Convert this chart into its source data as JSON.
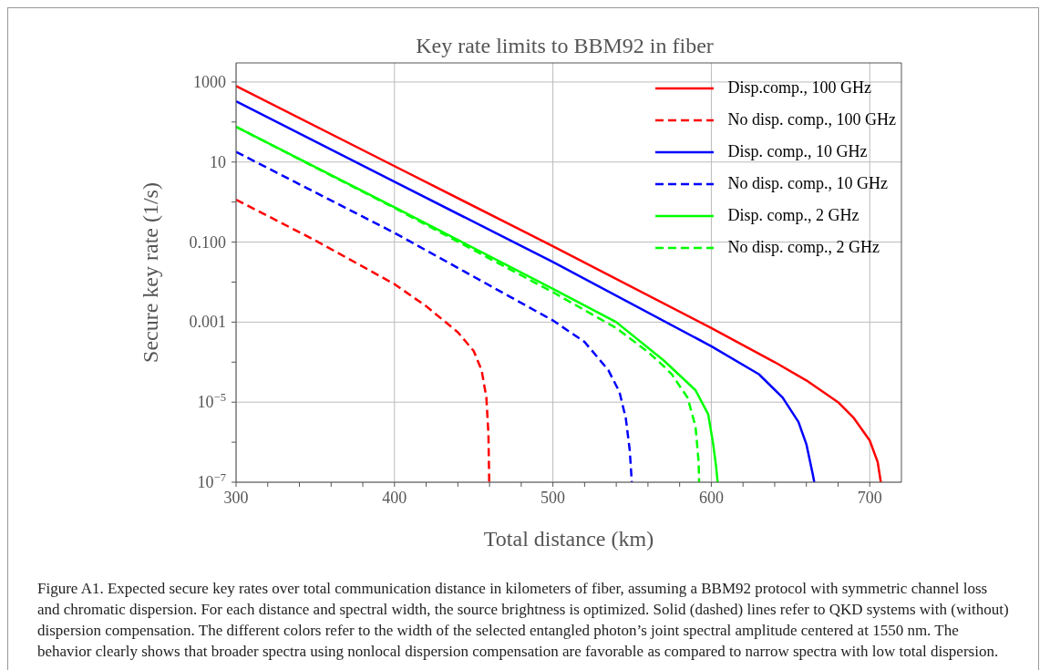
{
  "chart_data": {
    "type": "line",
    "title": "Key rate limits to BBM92 in fiber",
    "xlabel": "Total distance (km)",
    "ylabel": "Secure key rate (1/s)",
    "log": "y",
    "grid": true,
    "legend": "top right",
    "xlim": [
      300,
      720
    ],
    "xticks": [
      300,
      {
        "value": 320,
        "label": null
      },
      {
        "value": 340,
        "label": null
      },
      {
        "value": 360,
        "label": null
      },
      {
        "value": 380,
        "label": null
      },
      400,
      {
        "value": 420,
        "label": null
      },
      {
        "value": 440,
        "label": null
      },
      {
        "value": 460,
        "label": null
      },
      {
        "value": 480,
        "label": null
      },
      500,
      {
        "value": 520,
        "label": null
      },
      {
        "value": 540,
        "label": null
      },
      {
        "value": 560,
        "label": null
      },
      {
        "value": 580,
        "label": null
      },
      600,
      {
        "value": 620,
        "label": null
      },
      {
        "value": 640,
        "label": null
      },
      {
        "value": 660,
        "label": null
      },
      {
        "value": 680,
        "label": null
      },
      700
    ],
    "ylim": [
      1e-07,
      3000
    ],
    "yticks": [
      {
        "value": 1e-07,
        "label": "10$^{−7}$"
      },
      {
        "value": 1e-06,
        "label": null
      },
      {
        "value": 1e-05,
        "label": "10$^{−5}$"
      },
      {
        "value": 0.0001,
        "label": null
      },
      0.001,
      {
        "value": 0.01,
        "label": null
      },
      {
        "value": 0.1,
        "label": "0.100"
      },
      {
        "value": 1,
        "label": null
      },
      10,
      {
        "value": 100,
        "label": null
      },
      1000
    ],
    "series": [
      {
        "name": "Disp.comp., 100 GHz",
        "color": "#ff0000",
        "line_style": "solid",
        "x": [
          300,
          400,
          500,
          600,
          640,
          660,
          680,
          690,
          700,
          705,
          707
        ],
        "values": [
          794,
          7.9,
          0.079,
          0.00071,
          0.0001,
          3.5e-05,
          1e-05,
          4e-06,
          1.1e-06,
          3.2e-07,
          1e-07
        ]
      },
      {
        "name": "No disp. comp., 100 GHz",
        "color": "#ff0000",
        "line_style": "dashed",
        "x": [
          300,
          350,
          400,
          420,
          440,
          450,
          455,
          458,
          459.3,
          459.8
        ],
        "values": [
          1.15,
          0.11,
          0.0089,
          0.0025,
          0.00056,
          0.00019,
          6.3e-05,
          1.3e-05,
          1.6e-06,
          1e-07
        ]
      },
      {
        "name": "Disp. comp., 10 GHz",
        "color": "#0000ff",
        "line_style": "solid",
        "x": [
          300,
          400,
          500,
          600,
          630,
          645,
          655,
          660,
          664,
          665
        ],
        "values": [
          330,
          3.2,
          0.032,
          0.00025,
          5e-05,
          1.3e-05,
          3.2e-06,
          8.9e-07,
          1.6e-07,
          1e-07
        ]
      },
      {
        "name": "No disp. comp., 10 GHz",
        "color": "#0000ff",
        "line_style": "dashed",
        "x": [
          300,
          400,
          500,
          520,
          535,
          542,
          546,
          548.5,
          549.8
        ],
        "values": [
          18,
          0.17,
          0.0011,
          0.00032,
          6.3e-05,
          1.8e-05,
          4e-06,
          6.3e-07,
          1e-07
        ]
      },
      {
        "name": "Disp. comp., 2 GHz",
        "color": "#00ff00",
        "line_style": "solid",
        "x": [
          300,
          400,
          500,
          540,
          570,
          590,
          598,
          601,
          603,
          604
        ],
        "values": [
          76,
          0.74,
          0.0068,
          0.001,
          0.00011,
          2e-05,
          5e-06,
          1e-06,
          2.5e-07,
          1e-07
        ]
      },
      {
        "name": "No disp. comp., 2 GHz",
        "color": "#00ff00",
        "line_style": "dashed",
        "x": [
          300,
          400,
          500,
          540,
          560,
          570,
          575,
          585,
          590,
          592,
          592.3
        ],
        "values": [
          76,
          0.71,
          0.0056,
          0.00071,
          0.00018,
          7.9e-05,
          5e-05,
          1.3e-05,
          2.5e-06,
          3.2e-07,
          1e-07
        ]
      }
    ],
    "annotations": [
      "Figure A1. Expected secure key rates over total communication distance in kilometers of fiber, assuming a BBM92 protocol with symmetric channel loss and chromatic dispersion. For each distance and spectral width, the source brightness is optimized. Solid (dashed) lines refer to QKD systems with (without) dispersion compensation. The different colors refer to the width of the selected entangled photon’s joint spectral amplitude centered at 1550 nm. The behavior clearly shows that broader spectra using nonlocal dispersion compensation are favorable as compared to narrow spectra with low total dispersion."
    ]
  }
}
